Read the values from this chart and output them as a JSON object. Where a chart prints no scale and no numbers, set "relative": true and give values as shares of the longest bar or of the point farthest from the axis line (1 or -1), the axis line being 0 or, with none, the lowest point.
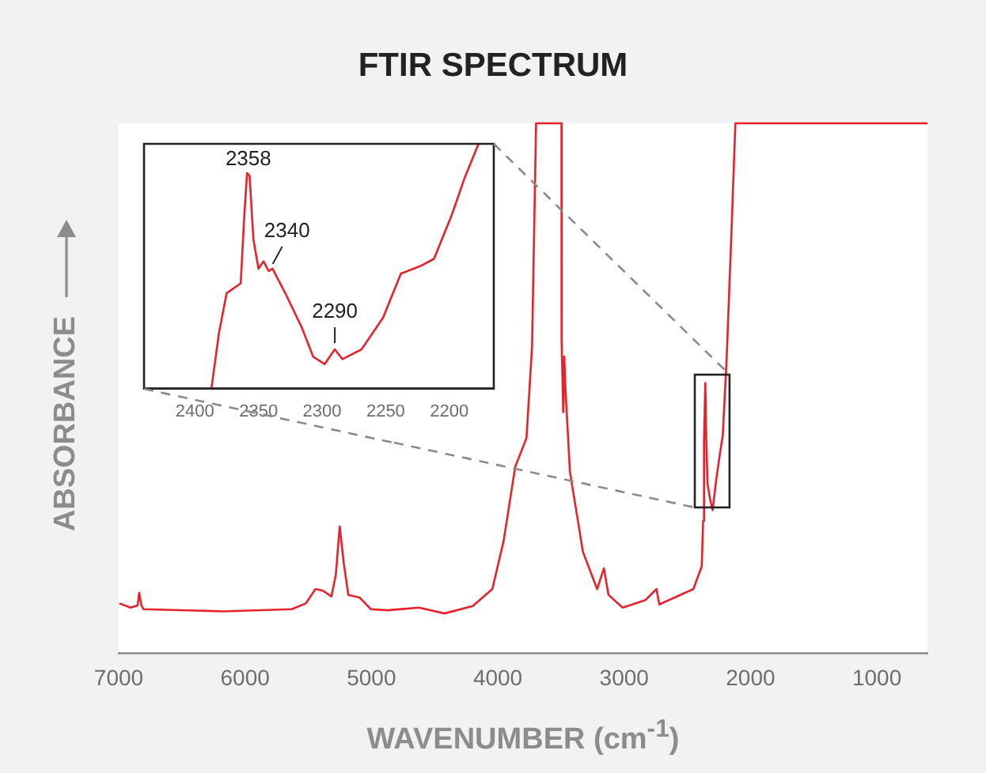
{
  "chart_data": [
    {
      "type": "line",
      "title": "FTIR SPECTRUM",
      "xlabel": "WAVENUMBER (cm$^{-1}$)",
      "ylabel": "ABSORBANCE",
      "relative": true,
      "xlim": [
        7000,
        600
      ],
      "xticks": [
        7000,
        6000,
        5000,
        4000,
        3000,
        2000,
        1000
      ],
      "grid": false,
      "x": [
        6995,
        6906,
        6850,
        6838,
        6820,
        6803,
        6168,
        5631,
        5519,
        5443,
        5385,
        5317,
        5282,
        5251,
        5219,
        5183,
        5094,
        5004,
        4870,
        4624,
        4422,
        4198,
        4043,
        3953,
        3862,
        3773,
        3729,
        3697,
        3496,
        3495,
        3482,
        3474,
        3465,
        3429,
        3326,
        3214,
        3160,
        3124,
        3012,
        2833,
        2744,
        2722,
        2452,
        2386,
        2375,
        2368,
        2358,
        2350,
        2340,
        2320,
        2300,
        2270,
        2240,
        2220,
        2190,
        2150,
        2120,
        600
      ],
      "series": [
        {
          "color": "#e8212b",
          "values": [
            0.094,
            0.086,
            0.09,
            0.114,
            0.09,
            0.083,
            0.079,
            0.083,
            0.094,
            0.121,
            0.118,
            0.107,
            0.148,
            0.239,
            0.17,
            0.11,
            0.105,
            0.083,
            0.081,
            0.086,
            0.075,
            0.089,
            0.121,
            0.213,
            0.352,
            0.406,
            0.578,
            1,
            1,
            0.59,
            0.455,
            0.56,
            0.5,
            0.342,
            0.191,
            0.121,
            0.16,
            0.11,
            0.086,
            0.1,
            0.121,
            0.092,
            0.121,
            0.164,
            0.25,
            0.4,
            0.51,
            0.4,
            0.32,
            0.29,
            0.27,
            0.33,
            0.38,
            0.41,
            0.55,
            0.8,
            1,
            1
          ]
        }
      ]
    },
    {
      "type": "line",
      "relative": true,
      "xlim": [
        2440,
        2165
      ],
      "xticks": [
        2400,
        2350,
        2300,
        2250,
        2200
      ],
      "grid": false,
      "x": [
        2387,
        2381,
        2375,
        2364,
        2361,
        2359,
        2357,
        2354,
        2350,
        2346,
        2342,
        2339,
        2328,
        2316,
        2307,
        2298,
        2290,
        2284,
        2269,
        2252,
        2238,
        2223,
        2212,
        2198,
        2188,
        2177
      ],
      "series": [
        {
          "color": "#e8212b",
          "values": [
            0,
            0.23,
            0.39,
            0.43,
            0.72,
            0.88,
            0.87,
            0.61,
            0.49,
            0.52,
            0.48,
            0.49,
            0.38,
            0.25,
            0.13,
            0.1,
            0.16,
            0.12,
            0.16,
            0.29,
            0.47,
            0.5,
            0.53,
            0.71,
            0.86,
            1
          ]
        }
      ],
      "annotations": [
        {
          "text": "2358",
          "x": 2358,
          "y": 0.88
        },
        {
          "text": "2340",
          "x": 2340,
          "y": 0.49
        },
        {
          "text": "2290",
          "x": 2290,
          "y": 0.16
        }
      ]
    }
  ]
}
